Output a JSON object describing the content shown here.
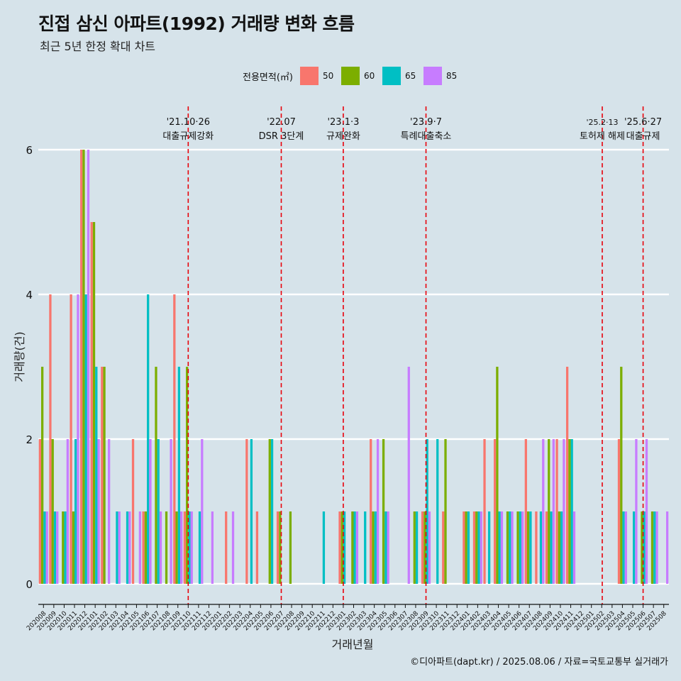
{
  "title": "진접 삼신 아파트(1992) 거래량 변화 흐름",
  "subtitle": "최근 5년 한정 확대 차트",
  "legend": {
    "title": "전용면적(㎡)",
    "items": [
      {
        "label": "50",
        "color": "#F8766D"
      },
      {
        "label": "60",
        "color": "#7CAE00"
      },
      {
        "label": "65",
        "color": "#00BFC4"
      },
      {
        "label": "85",
        "color": "#C77CFF"
      }
    ]
  },
  "caption": "©디아파트(dapt.kr) / 2025.08.06 / 자료=국토교통부 실거래가",
  "chart_data": {
    "type": "bar",
    "xlabel": "거래년월",
    "ylabel": "거래량(건)",
    "ylim": [
      0,
      6
    ],
    "yticks": [
      0,
      2,
      4,
      6
    ],
    "grid": true,
    "legend_position": "top",
    "categories": [
      "202008",
      "202009",
      "202010",
      "202011",
      "202012",
      "202101",
      "202102",
      "202103",
      "202104",
      "202105",
      "202106",
      "202107",
      "202108",
      "202109",
      "202110",
      "202111",
      "202112",
      "202201",
      "202202",
      "202203",
      "202204",
      "202205",
      "202206",
      "202207",
      "202208",
      "202209",
      "202210",
      "202211",
      "202212",
      "202301",
      "202302",
      "202303",
      "202304",
      "202305",
      "202306",
      "202307",
      "202308",
      "202309",
      "202310",
      "202311",
      "202312",
      "202401",
      "202402",
      "202403",
      "202404",
      "202405",
      "202406",
      "202407",
      "202408",
      "202409",
      "202410",
      "202411",
      "202412",
      "202501",
      "202502",
      "202503",
      "202504",
      "202505",
      "202506",
      "202507",
      "202508"
    ],
    "series": [
      {
        "name": "50",
        "color": "#F8766D",
        "values": [
          2,
          4,
          0,
          4,
          6,
          5,
          3,
          0,
          0,
          2,
          1,
          0,
          0,
          4,
          1,
          0,
          0,
          0,
          1,
          0,
          2,
          1,
          0,
          1,
          0,
          0,
          0,
          0,
          0,
          1,
          0,
          0,
          2,
          0,
          0,
          0,
          0,
          1,
          0,
          1,
          0,
          1,
          1,
          2,
          2,
          0,
          0,
          2,
          1,
          1,
          2,
          3,
          0,
          0,
          0,
          0,
          2,
          0,
          0,
          0,
          0
        ]
      },
      {
        "name": "60",
        "color": "#7CAE00",
        "values": [
          3,
          2,
          1,
          1,
          6,
          5,
          3,
          0,
          0,
          0,
          1,
          3,
          1,
          1,
          3,
          0,
          0,
          0,
          0,
          0,
          0,
          0,
          2,
          1,
          1,
          0,
          0,
          0,
          0,
          1,
          1,
          0,
          1,
          2,
          0,
          0,
          1,
          1,
          0,
          2,
          0,
          1,
          1,
          0,
          3,
          1,
          1,
          1,
          0,
          2,
          1,
          2,
          0,
          0,
          0,
          0,
          3,
          0,
          1,
          1,
          0
        ]
      },
      {
        "name": "65",
        "color": "#00BFC4",
        "values": [
          1,
          1,
          1,
          2,
          4,
          3,
          0,
          1,
          1,
          0,
          4,
          2,
          0,
          3,
          1,
          1,
          0,
          0,
          0,
          0,
          2,
          0,
          2,
          0,
          0,
          0,
          0,
          1,
          0,
          1,
          1,
          1,
          1,
          1,
          0,
          0,
          1,
          2,
          2,
          0,
          0,
          1,
          1,
          1,
          1,
          1,
          1,
          1,
          1,
          1,
          1,
          2,
          0,
          0,
          0,
          0,
          1,
          1,
          1,
          1,
          0
        ]
      },
      {
        "name": "85",
        "color": "#C77CFF",
        "values": [
          1,
          1,
          2,
          4,
          6,
          2,
          2,
          1,
          1,
          1,
          2,
          1,
          2,
          1,
          1,
          2,
          1,
          0,
          1,
          0,
          0,
          0,
          0,
          0,
          0,
          0,
          0,
          0,
          0,
          0,
          1,
          0,
          2,
          1,
          0,
          3,
          0,
          1,
          0,
          0,
          0,
          0,
          1,
          0,
          1,
          1,
          1,
          0,
          2,
          2,
          2,
          1,
          0,
          0,
          0,
          0,
          1,
          2,
          2,
          1,
          1
        ]
      }
    ],
    "annotations": [
      {
        "date": "'21.10·26",
        "label": "대출규제강화",
        "x_index": 14.0
      },
      {
        "date": "'22.07",
        "label": "DSR 3단계",
        "x_index": 23.0
      },
      {
        "date": "'23.1·3",
        "label": "규제완화",
        "x_index": 29.0
      },
      {
        "date": "'23.9·7",
        "label": "특례대출축소",
        "x_index": 37.0
      },
      {
        "date": "'25.2·13",
        "label": "토허제 해제",
        "x_index": 54.05
      },
      {
        "date": "'25.6·27",
        "label": "대출규제",
        "x_index": 58.0
      }
    ]
  }
}
